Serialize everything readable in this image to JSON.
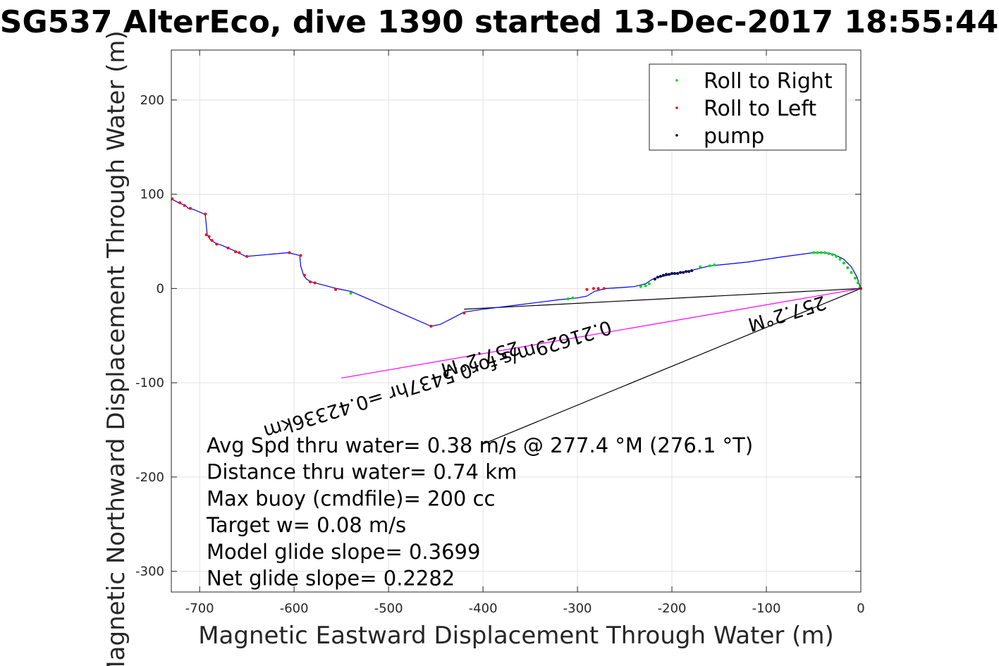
{
  "title": "SG537 AlterEco, dive 1390 started 13-Dec-2017 18:55:44",
  "chart_data": {
    "type": "line",
    "xlabel": "Magnetic Eastward Displacement Through Water (m)",
    "ylabel": "Magnetic Northward Displacement Through Water (m)",
    "xlim": [
      -730,
      0
    ],
    "ylim": [
      -322,
      253
    ],
    "x_ticks": [
      -700,
      -600,
      -500,
      -400,
      -300,
      -200,
      -100,
      0
    ],
    "y_ticks": [
      -300,
      -200,
      -100,
      0,
      100,
      200
    ],
    "grid": true,
    "legend_position": "top-right",
    "legend": [
      {
        "label": "Roll to Right",
        "color": "#00dd00"
      },
      {
        "label": "Roll to Left",
        "color": "#ff0000"
      },
      {
        "label": "pump",
        "color": "#000000"
      }
    ],
    "track_color": "#0000ff",
    "track": {
      "x": [
        -730,
        -722,
        -715,
        -712,
        -707,
        -695,
        -694,
        -692,
        -691,
        -689,
        -686,
        -683,
        -677,
        -670,
        -663,
        -657,
        -651,
        -606,
        -594,
        -593,
        -590,
        -587,
        -582,
        -578,
        -555,
        -540,
        -455,
        -445,
        -420,
        -400,
        -360,
        -320,
        -300,
        -290,
        -282,
        -270,
        -240,
        -228,
        -222,
        -218,
        -200,
        -180,
        -160,
        -120,
        -80,
        -50,
        -38,
        -28,
        -18,
        -10,
        -4,
        0
      ],
      "y": [
        95,
        91,
        88,
        85,
        84,
        79,
        78,
        57,
        56,
        52,
        50,
        48,
        46,
        43,
        40,
        37,
        34,
        38,
        35,
        24,
        14,
        10,
        7,
        6,
        0,
        -3,
        -40,
        -38,
        -25,
        -22,
        -17,
        -12,
        -10,
        -8,
        -3,
        0,
        2,
        5,
        9,
        11,
        15,
        19,
        24,
        28,
        34,
        38,
        38,
        36,
        31,
        23,
        12,
        0
      ]
    },
    "roll_right_points": {
      "x": [
        -50,
        -46,
        -42,
        -38,
        -34,
        -30,
        -26,
        -22,
        -18,
        -14,
        -10,
        -6,
        -3,
        -1,
        -310,
        -305,
        -233,
        -228,
        -224,
        -170,
        -160,
        -155,
        -540
      ],
      "y": [
        38,
        38,
        38,
        38,
        37,
        36,
        34,
        31,
        27,
        22,
        17,
        11,
        6,
        1,
        -11,
        -10,
        2,
        3,
        5,
        23,
        24,
        25,
        -5
      ]
    },
    "roll_left_points": {
      "x": [
        -729,
        -721,
        -716,
        -710,
        -694,
        -693,
        -690,
        -687,
        -682,
        -670,
        -662,
        -658,
        -650,
        -605,
        -593,
        -589,
        -583,
        -578,
        -556,
        -455,
        -420,
        -290,
        -283,
        -278,
        -272,
        0
      ],
      "y": [
        95,
        91,
        88,
        85,
        79,
        57,
        55,
        51,
        47,
        43,
        39,
        38,
        34,
        38,
        35,
        14,
        7,
        6,
        -1,
        -40,
        -26,
        -1,
        0,
        0,
        0,
        0
      ]
    },
    "pump_points": {
      "x": [
        -218,
        -215,
        -212,
        -209,
        -206,
        -203,
        -200,
        -197,
        -194,
        -191,
        -188,
        -185,
        -182,
        -179
      ],
      "y": [
        10,
        12,
        13,
        14,
        15,
        15,
        16,
        16,
        16,
        17,
        17,
        18,
        18,
        19
      ]
    },
    "lines": [
      {
        "from": [
          0,
          0
        ],
        "to": [
          -420,
          -22
        ],
        "color": "#000000"
      },
      {
        "from": [
          0,
          0
        ],
        "to": [
          -400,
          -165
        ],
        "color": "#000000"
      },
      {
        "from": [
          0,
          0
        ],
        "to": [
          -550,
          -95
        ],
        "color": "#ff00ff"
      }
    ],
    "rotated_labels": [
      {
        "text": "257.2°M",
        "at": [
          -80,
          -20
        ]
      },
      {
        "text": "0.21629m/s for0.5437hr =0.42336km",
        "at": [
          -450,
          -90
        ]
      },
      {
        "text": "257.2°M",
        "at": [
          -405,
          -68
        ]
      }
    ],
    "annotations": [
      "Avg Spd thru water=  0.38 m/s @ 277.4 °M (276.1 °T)",
      "Distance thru water=  0.74 km",
      "Max buoy (cmdfile)= 200 cc",
      "Target w= 0.08 m/s",
      "Model glide slope= 0.3699",
      "Net glide slope= 0.2282"
    ]
  }
}
